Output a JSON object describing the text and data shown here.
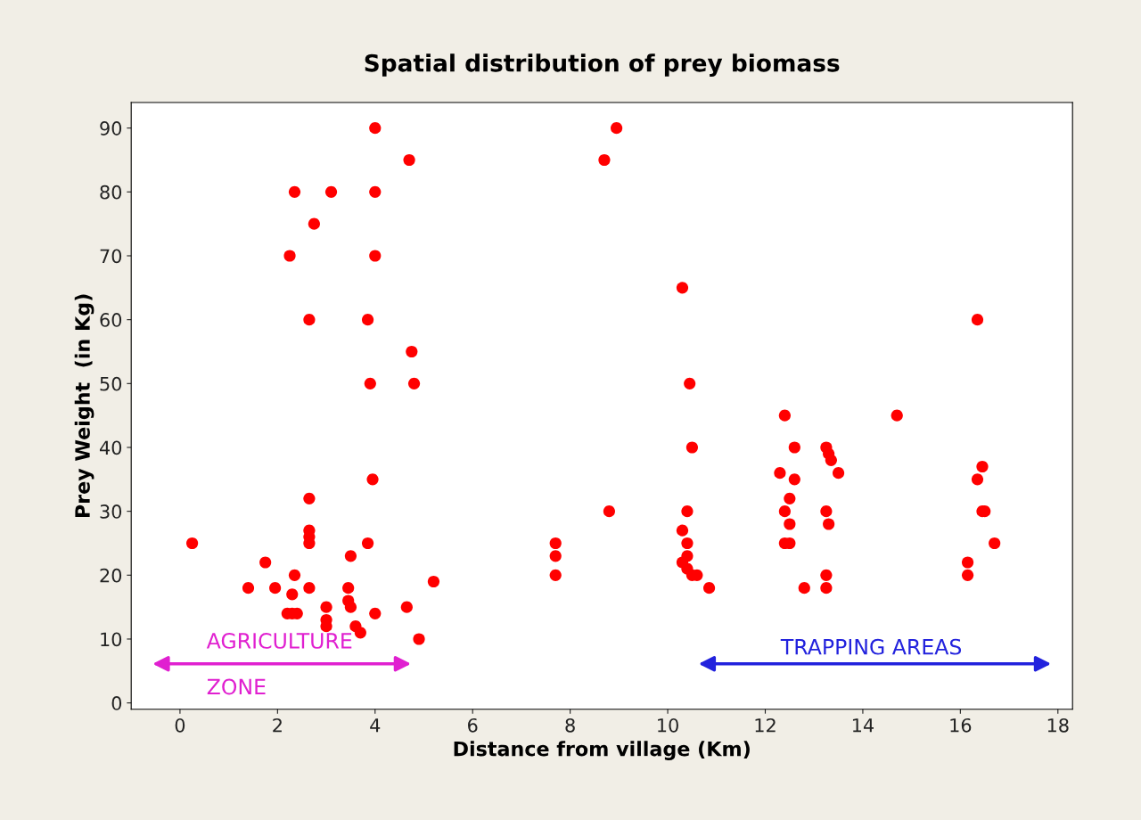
{
  "chart_data": {
    "type": "scatter",
    "title": "Spatial distribution of prey biomass",
    "xlabel": "Distance from village (Km)",
    "ylabel": "Prey Weight  (in Kg)",
    "x": [
      0.25,
      1.4,
      1.75,
      1.95,
      2.2,
      2.25,
      2.35,
      2.35,
      2.3,
      2.3,
      2.4,
      2.65,
      2.65,
      2.65,
      2.65,
      2.65,
      2.65,
      2.75,
      3.0,
      3.0,
      3.0,
      3.1,
      3.45,
      3.45,
      3.5,
      3.5,
      3.6,
      3.7,
      3.85,
      3.85,
      3.9,
      4.0,
      4.0,
      4.0,
      3.95,
      4.0,
      4.65,
      4.7,
      4.75,
      4.8,
      4.9,
      5.2,
      7.7,
      7.7,
      7.7,
      8.7,
      8.8,
      8.95,
      10.3,
      10.3,
      10.3,
      10.4,
      10.4,
      10.4,
      10.4,
      10.45,
      10.5,
      10.5,
      10.6,
      10.85,
      12.3,
      12.4,
      12.4,
      12.4,
      12.5,
      12.5,
      12.5,
      12.6,
      12.6,
      12.8,
      13.25,
      13.25,
      13.25,
      13.25,
      13.3,
      13.3,
      13.35,
      13.5,
      14.7,
      16.15,
      16.15,
      16.35,
      16.35,
      16.45,
      16.45,
      16.5,
      16.7
    ],
    "values": [
      25,
      18,
      22,
      18,
      14,
      70,
      80,
      20,
      17,
      14,
      14,
      18,
      25,
      26,
      27,
      32,
      60,
      75,
      15,
      13,
      12,
      80,
      18,
      16,
      23,
      15,
      12,
      11,
      25,
      60,
      50,
      90,
      80,
      70,
      35,
      14,
      15,
      85,
      55,
      50,
      10,
      19,
      25,
      23,
      20,
      85,
      30,
      90,
      65,
      27,
      22,
      30,
      25,
      23,
      21,
      50,
      40,
      20,
      20,
      18,
      36,
      45,
      30,
      25,
      32,
      28,
      25,
      40,
      35,
      18,
      40,
      30,
      20,
      18,
      39,
      28,
      38,
      36,
      45,
      20,
      22,
      60,
      35,
      37,
      30,
      30,
      25
    ],
    "color": "#ff0000",
    "marker": "circle",
    "xlim": [
      -1,
      18.3
    ],
    "ylim": [
      -1,
      94
    ],
    "xticks": [
      0,
      2,
      4,
      6,
      8,
      10,
      12,
      14,
      16,
      18
    ],
    "yticks": [
      0,
      10,
      20,
      30,
      40,
      50,
      60,
      70,
      80,
      90
    ],
    "grid": false,
    "annotations": [
      "AGRICULTURE\nZONE",
      "TRAPPING AREAS"
    ]
  }
}
